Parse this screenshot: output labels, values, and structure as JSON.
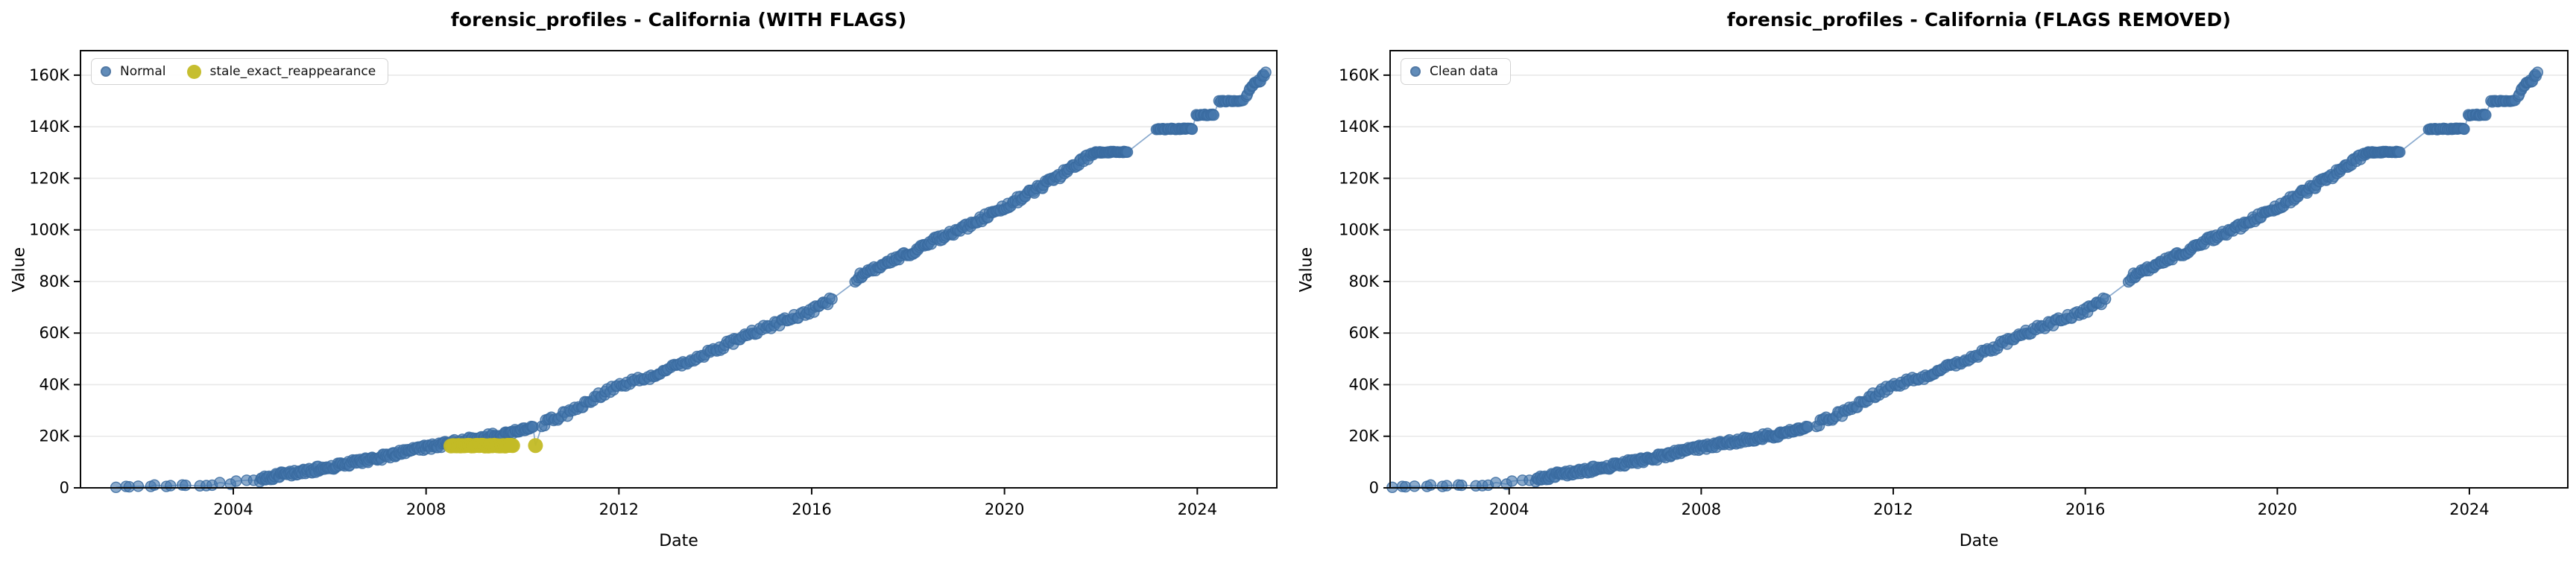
{
  "figure": {
    "background": "#ffffff",
    "panels": [
      {
        "title": "forensic_profiles - California (WITH FLAGS)",
        "xlabel": "Date",
        "ylabel": "Value",
        "legend": [
          {
            "label": "Normal",
            "marker_color": "#4678ad"
          },
          {
            "label": "stale_exact_reappearance",
            "marker_color": "#c3ba25"
          }
        ]
      },
      {
        "title": "forensic_profiles - California (FLAGS REMOVED)",
        "xlabel": "Date",
        "ylabel": "Value",
        "legend": [
          {
            "label": "Clean data",
            "marker_color": "#4678ad"
          }
        ]
      }
    ]
  },
  "chart_data": {
    "type": "scatter",
    "title_left": "forensic_profiles - California (WITH FLAGS)",
    "title_right": "forensic_profiles - California (FLAGS REMOVED)",
    "xlabel": "Date",
    "ylabel": "Value",
    "grid": "horizontal",
    "legend_position": "upper left",
    "x_axis": {
      "ticks": [
        2004,
        2008,
        2012,
        2016,
        2020,
        2024
      ],
      "tick_labels": [
        "2004",
        "2008",
        "2012",
        "2016",
        "2020",
        "2024"
      ]
    },
    "y_axis": {
      "ticks": [
        0,
        20000,
        40000,
        60000,
        80000,
        100000,
        120000,
        140000,
        160000
      ],
      "tick_labels": [
        "0",
        "20K",
        "40K",
        "60K",
        "80K",
        "100K",
        "120K",
        "140K",
        "160K"
      ],
      "lim": [
        0,
        169500
      ]
    },
    "xlims": [
      [
        2000.83,
        2025.65
      ],
      [
        2001.52,
        2026.05
      ]
    ],
    "colors": {
      "point_fill": "#4678ad",
      "point_edge": "#3a6ba0",
      "line": "#84a5cb",
      "flag": "#c3ba25",
      "grid": "#e8e8e8",
      "spine": "#0a0a0a"
    },
    "series": [
      {
        "name": "Normal",
        "panels": [
          0,
          1
        ],
        "trend": [
          [
            2001.55,
            250
          ],
          [
            2002.3,
            600
          ],
          [
            2003.0,
            1000
          ],
          [
            2003.8,
            1800
          ],
          [
            2004.25,
            2500
          ],
          [
            2004.6,
            3500
          ],
          [
            2005.0,
            5000
          ],
          [
            2005.5,
            6400
          ],
          [
            2006.0,
            8000
          ],
          [
            2006.5,
            9800
          ],
          [
            2007.0,
            11600
          ],
          [
            2007.5,
            13600
          ],
          [
            2008.0,
            15600
          ],
          [
            2008.5,
            17400
          ],
          [
            2009.0,
            18900
          ],
          [
            2009.5,
            20400
          ],
          [
            2010.2,
            22800
          ],
          [
            2010.4,
            24800
          ],
          [
            2011.0,
            29500
          ],
          [
            2011.8,
            38200
          ],
          [
            2012.8,
            44200
          ],
          [
            2013.9,
            52800
          ],
          [
            2014.9,
            61000
          ],
          [
            2016.0,
            68500
          ],
          [
            2016.45,
            73400
          ],
          [
            2016.93,
            81500
          ],
          [
            2017.74,
            88400
          ],
          [
            2018.67,
            97000
          ],
          [
            2019.24,
            101400
          ],
          [
            2019.97,
            108600
          ],
          [
            2021.0,
            119300
          ],
          [
            2021.5,
            125400
          ],
          [
            2021.85,
            130000
          ],
          [
            2022.55,
            130300
          ],
          [
            2023.15,
            139000
          ],
          [
            2023.9,
            139300
          ],
          [
            2023.98,
            144500
          ],
          [
            2024.35,
            144700
          ],
          [
            2024.45,
            149800
          ],
          [
            2024.95,
            150100
          ],
          [
            2025.05,
            153500
          ],
          [
            2025.2,
            156800
          ],
          [
            2025.32,
            158200
          ],
          [
            2025.42,
            161000
          ]
        ],
        "segments": [
          {
            "x0": 2001.55,
            "x1": 2004.45,
            "n": 18,
            "jitter": 600
          },
          {
            "x0": 2004.55,
            "x1": 2010.22,
            "n": 240,
            "jitter": 1100
          },
          {
            "x0": 2010.4,
            "x1": 2016.42,
            "n": 150,
            "jitter": 1200
          },
          {
            "x0": 2016.9,
            "x1": 2021.84,
            "n": 160,
            "jitter": 1200
          },
          {
            "x0": 2021.85,
            "x1": 2022.55,
            "n": 40,
            "jitter": 250
          },
          {
            "x0": 2023.15,
            "x1": 2023.9,
            "n": 32,
            "jitter": 250
          },
          {
            "x0": 2023.98,
            "x1": 2024.35,
            "n": 15,
            "jitter": 250
          },
          {
            "x0": 2024.45,
            "x1": 2024.95,
            "n": 18,
            "jitter": 250
          },
          {
            "x0": 2025.02,
            "x1": 2025.42,
            "n": 16,
            "jitter": 700
          }
        ]
      },
      {
        "name": "stale_exact_reappearance",
        "panels": [
          0
        ],
        "stale_value": 16350,
        "band": {
          "x0": 2008.52,
          "x1": 2009.8,
          "n": 34
        },
        "isolated": [
          [
            2010.27,
            16400
          ]
        ],
        "dip_line": [
          [
            2010.2,
            22800
          ],
          [
            2010.27,
            16400
          ],
          [
            2010.4,
            24800
          ]
        ]
      }
    ]
  }
}
